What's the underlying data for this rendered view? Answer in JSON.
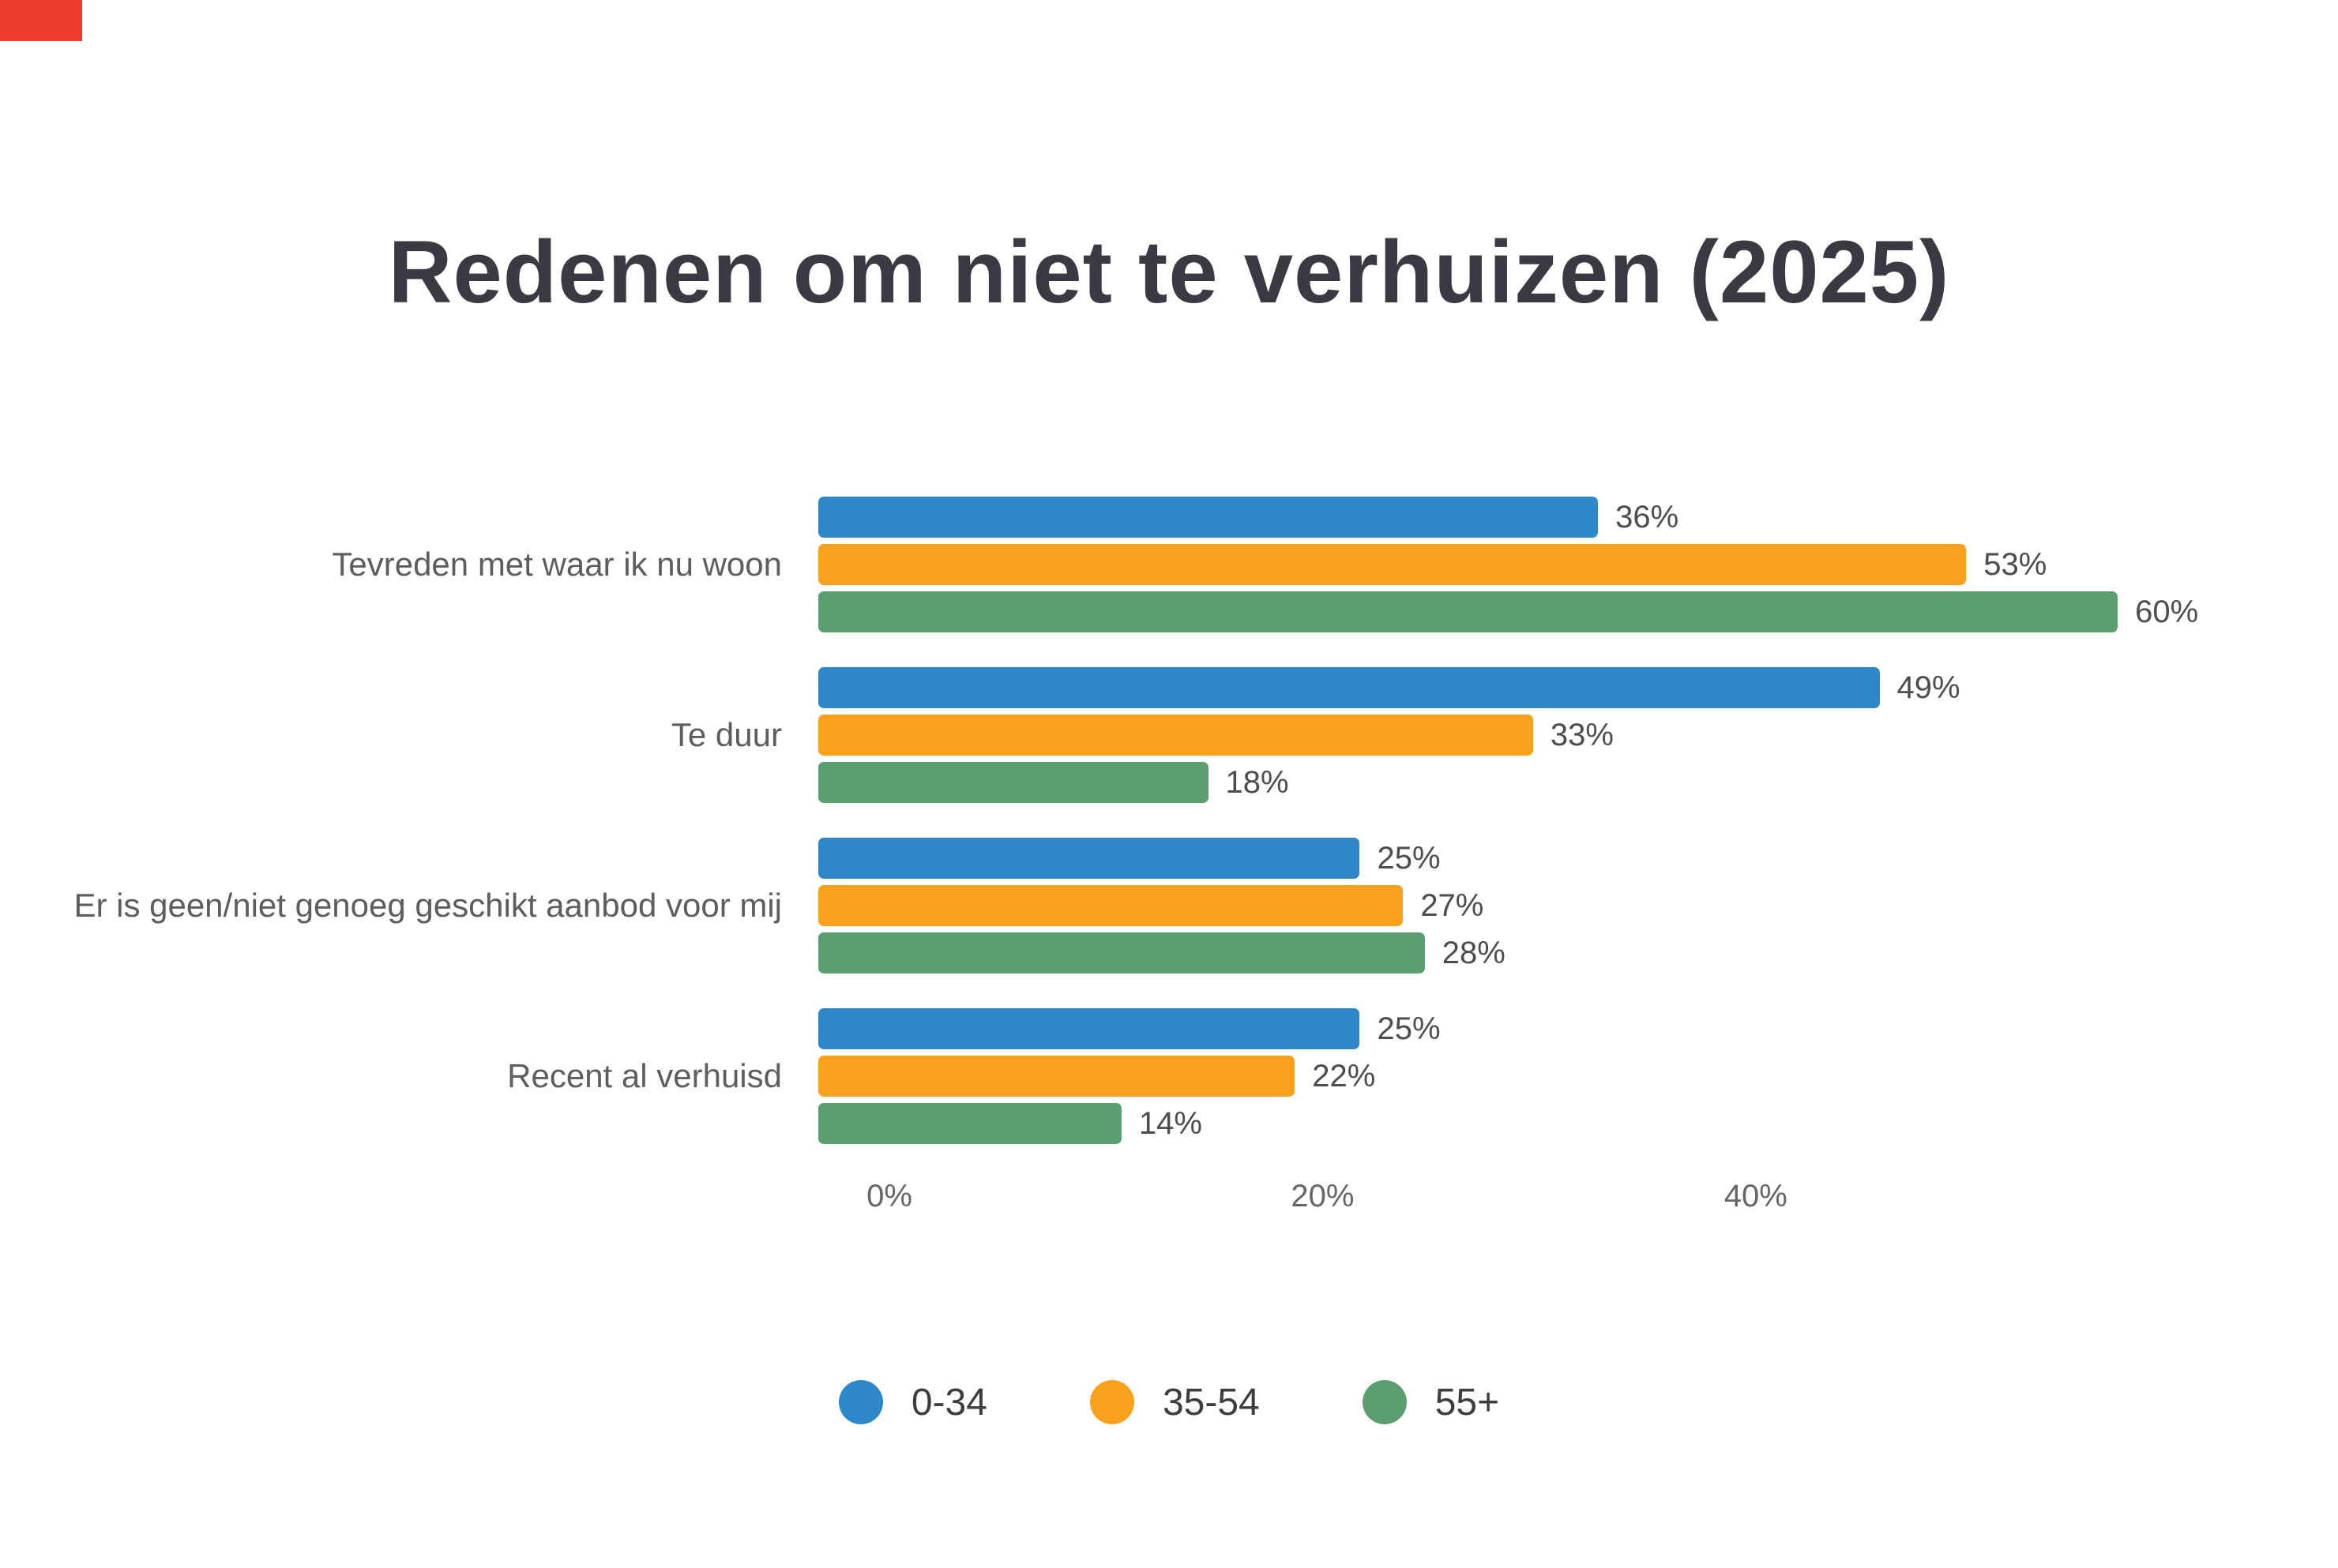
{
  "page": {
    "title": "Redenen om niet te verhuizen (2025)"
  },
  "colors": {
    "blue": "#2D87C9",
    "orange": "#F9A11C",
    "green": "#5C9E6F",
    "corner_marker": "#EE3B2B"
  },
  "chart_data": {
    "type": "bar",
    "orientation": "horizontal",
    "title": "Redenen om niet te verhuizen (2025)",
    "categories": [
      "Tevreden met waar ik nu woon",
      "Te duur",
      "Er is geen/niet genoeg geschikt aanbod voor mij",
      "Recent al verhuisd"
    ],
    "series": [
      {
        "name": "0-34",
        "color": "#2D87C9",
        "values": [
          36,
          49,
          25,
          25
        ]
      },
      {
        "name": "35-54",
        "color": "#F9A11C",
        "values": [
          53,
          33,
          27,
          22
        ]
      },
      {
        "name": "55+",
        "color": "#5C9E6F",
        "values": [
          60,
          18,
          28,
          14
        ]
      }
    ],
    "value_suffix": "%",
    "x_ticks": [
      "0%",
      "20%",
      "40%"
    ],
    "x_tick_values": [
      0,
      20,
      40
    ],
    "xlim": [
      0,
      62
    ],
    "legend_position": "bottom",
    "grid": false,
    "value_labels": "outside-end"
  }
}
